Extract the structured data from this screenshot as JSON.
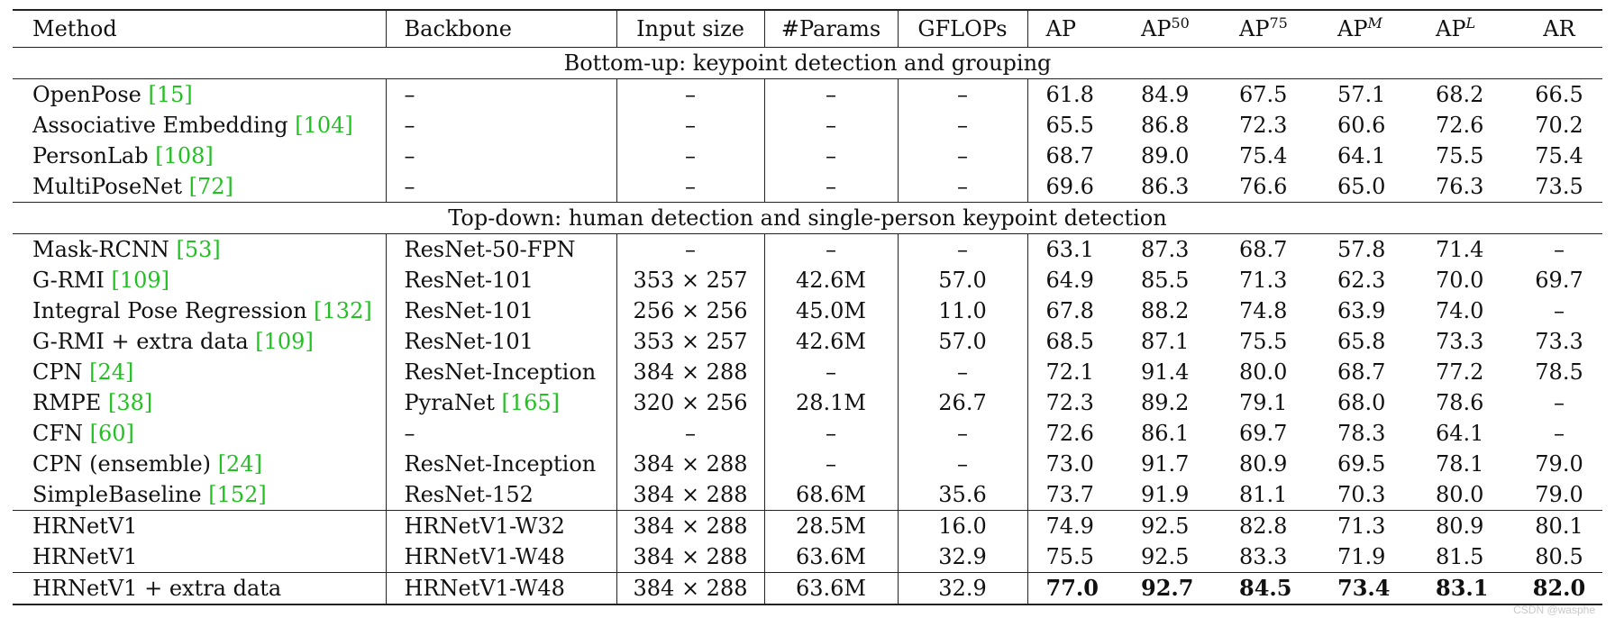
{
  "table": {
    "headers": {
      "method": "Method",
      "backbone": "Backbone",
      "input_size": "Input size",
      "params": "#Params",
      "gflops": "GFLOPs",
      "ap": "AP",
      "ap50_base": "AP",
      "ap50_sup": "50",
      "ap75_base": "AP",
      "ap75_sup": "75",
      "apm_base": "AP",
      "apm_sup": "M",
      "apl_base": "AP",
      "apl_sup": "L",
      "ar": "AR"
    },
    "sections": [
      {
        "title": "Bottom-up: keypoint detection and grouping",
        "rows": [
          {
            "method": "OpenPose ",
            "cite": "[15]",
            "backbone": "–",
            "backbone_cite": "",
            "input_size": "–",
            "params": "–",
            "gflops": "–",
            "ap": "61.8",
            "ap50": "84.9",
            "ap75": "67.5",
            "apm": "57.1",
            "apl": "68.2",
            "ar": "66.5"
          },
          {
            "method": "Associative Embedding ",
            "cite": "[104]",
            "backbone": "–",
            "backbone_cite": "",
            "input_size": "–",
            "params": "–",
            "gflops": "–",
            "ap": "65.5",
            "ap50": "86.8",
            "ap75": "72.3",
            "apm": "60.6",
            "apl": "72.6",
            "ar": "70.2"
          },
          {
            "method": "PersonLab ",
            "cite": "[108]",
            "backbone": "–",
            "backbone_cite": "",
            "input_size": "–",
            "params": "–",
            "gflops": "–",
            "ap": "68.7",
            "ap50": "89.0",
            "ap75": "75.4",
            "apm": "64.1",
            "apl": "75.5",
            "ar": "75.4"
          },
          {
            "method": "MultiPoseNet ",
            "cite": "[72]",
            "backbone": "–",
            "backbone_cite": "",
            "input_size": "–",
            "params": "–",
            "gflops": "–",
            "ap": "69.6",
            "ap50": "86.3",
            "ap75": "76.6",
            "apm": "65.0",
            "apl": "76.3",
            "ar": "73.5"
          }
        ]
      },
      {
        "title": "Top-down: human detection and single-person keypoint detection",
        "rows": [
          {
            "method": "Mask-RCNN ",
            "cite": "[53]",
            "backbone": "ResNet-50-FPN",
            "backbone_cite": "",
            "input_size": "–",
            "params": "–",
            "gflops": "–",
            "ap": "63.1",
            "ap50": "87.3",
            "ap75": "68.7",
            "apm": "57.8",
            "apl": "71.4",
            "ar": "–"
          },
          {
            "method": "G-RMI ",
            "cite": "[109]",
            "backbone": "ResNet-101",
            "backbone_cite": "",
            "input_size": "353 × 257",
            "params": "42.6M",
            "gflops": "57.0",
            "ap": "64.9",
            "ap50": "85.5",
            "ap75": "71.3",
            "apm": "62.3",
            "apl": "70.0",
            "ar": "69.7"
          },
          {
            "method": "Integral Pose Regression ",
            "cite": "[132]",
            "backbone": "ResNet-101",
            "backbone_cite": "",
            "input_size": "256 × 256",
            "params": "45.0M",
            "gflops": "11.0",
            "ap": "67.8",
            "ap50": "88.2",
            "ap75": "74.8",
            "apm": "63.9",
            "apl": "74.0",
            "ar": "–"
          },
          {
            "method": "G-RMI + extra data ",
            "cite": "[109]",
            "backbone": "ResNet-101",
            "backbone_cite": "",
            "input_size": "353 × 257",
            "params": "42.6M",
            "gflops": "57.0",
            "ap": "68.5",
            "ap50": "87.1",
            "ap75": "75.5",
            "apm": "65.8",
            "apl": "73.3",
            "ar": "73.3"
          },
          {
            "method": "CPN ",
            "cite": "[24]",
            "backbone": "ResNet-Inception",
            "backbone_cite": "",
            "input_size": "384 × 288",
            "params": "–",
            "gflops": "–",
            "ap": "72.1",
            "ap50": "91.4",
            "ap75": "80.0",
            "apm": "68.7",
            "apl": "77.2",
            "ar": "78.5"
          },
          {
            "method": "RMPE ",
            "cite": "[38]",
            "backbone": "PyraNet ",
            "backbone_cite": "[165]",
            "input_size": "320 × 256",
            "params": "28.1M",
            "gflops": "26.7",
            "ap": "72.3",
            "ap50": "89.2",
            "ap75": "79.1",
            "apm": "68.0",
            "apl": "78.6",
            "ar": "–"
          },
          {
            "method": "CFN ",
            "cite": "[60]",
            "backbone": "–",
            "backbone_cite": "",
            "input_size": "–",
            "params": "–",
            "gflops": "–",
            "ap": "72.6",
            "ap50": "86.1",
            "ap75": "69.7",
            "apm": "78.3",
            "apl": "64.1",
            "ar": "–"
          },
          {
            "method": "CPN (ensemble) ",
            "cite": "[24]",
            "backbone": "ResNet-Inception",
            "backbone_cite": "",
            "input_size": "384 × 288",
            "params": "–",
            "gflops": "–",
            "ap": "73.0",
            "ap50": "91.7",
            "ap75": "80.9",
            "apm": "69.5",
            "apl": "78.1",
            "ar": "79.0"
          },
          {
            "method": "SimpleBaseline ",
            "cite": "[152]",
            "backbone": "ResNet-152",
            "backbone_cite": "",
            "input_size": "384 × 288",
            "params": "68.6M",
            "gflops": "35.6",
            "ap": "73.7",
            "ap50": "91.9",
            "ap75": "81.1",
            "apm": "70.3",
            "apl": "80.0",
            "ar": "79.0"
          }
        ]
      }
    ],
    "hrnet_rows": [
      {
        "method": "HRNetV1",
        "cite": "",
        "backbone": "HRNetV1-W32",
        "backbone_cite": "",
        "input_size": "384 × 288",
        "params": "28.5M",
        "gflops": "16.0",
        "ap": "74.9",
        "ap50": "92.5",
        "ap75": "82.8",
        "apm": "71.3",
        "apl": "80.9",
        "ar": "80.1"
      },
      {
        "method": "HRNetV1",
        "cite": "",
        "backbone": "HRNetV1-W48",
        "backbone_cite": "",
        "input_size": "384 × 288",
        "params": "63.6M",
        "gflops": "32.9",
        "ap": "75.5",
        "ap50": "92.5",
        "ap75": "83.3",
        "apm": "71.9",
        "apl": "81.5",
        "ar": "80.5"
      }
    ],
    "final_row": {
      "method": "HRNetV1 + extra data",
      "cite": "",
      "backbone": "HRNetV1-W48",
      "backbone_cite": "",
      "input_size": "384 × 288",
      "params": "63.6M",
      "gflops": "32.9",
      "ap": "77.0",
      "ap50": "92.7",
      "ap75": "84.5",
      "apm": "73.4",
      "apl": "83.1",
      "ar": "82.0"
    },
    "colors": {
      "citation": "#22c022"
    }
  },
  "watermark": "CSDN @wasphe"
}
